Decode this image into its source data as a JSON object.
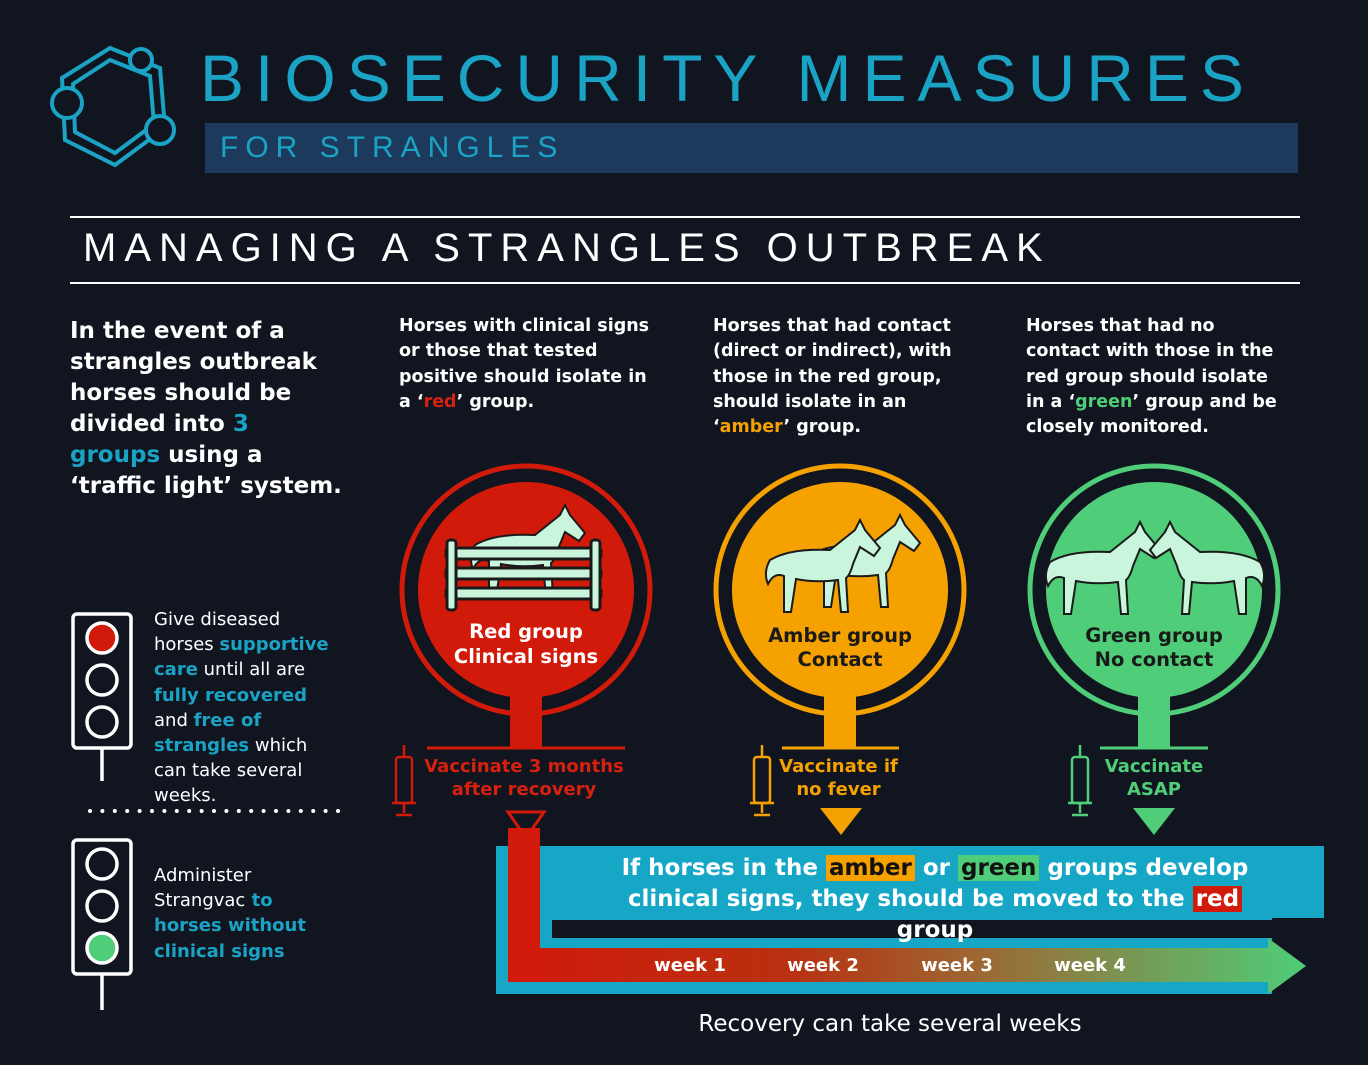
{
  "header": {
    "title": "BIOSECURITY MEASURES",
    "subtitle": "FOR STRANGLES"
  },
  "section_heading": "MANAGING A STRANGLES OUTBREAK",
  "intro": [
    "In the event of a strangles outbreak horses should be divided into ",
    "3 groups",
    " using a ‘traffic light’ system."
  ],
  "groups": [
    {
      "description": [
        "Horses with clinical signs or those that tested positive should isolate in a ‘",
        "red",
        "’ group."
      ],
      "name": "Red group",
      "status": "Clinical signs",
      "vaccination": "Vaccinate 3 months after recovery"
    },
    {
      "description": [
        "Horses that had contact (direct or indirect), with those in the red group, should isolate in an ‘",
        "amber",
        "’ group."
      ],
      "name": "Amber group",
      "status": "Contact",
      "vaccination": "Vaccinate if no fever"
    },
    {
      "description": [
        "Horses that had no contact with those in the red group should isolate in a ‘",
        "green",
        "’ group and be closely monitored."
      ],
      "name": "Green group",
      "status": "No contact",
      "vaccination": "Vaccinate ASAP"
    }
  ],
  "traffic_lights": [
    {
      "text": [
        "Give diseased horses ",
        "supportive care",
        " until all are ",
        "fully recovered",
        " and ",
        "free of strangles",
        " which can take several weeks."
      ]
    },
    {
      "text": [
        "Administer Strangvac",
        " to horses without clinical signs"
      ]
    }
  ],
  "banner": [
    "If horses in the ",
    "amber",
    " or ",
    "green",
    " groups develop clinical signs, they should be moved to the ",
    "red",
    " group"
  ],
  "timeline": {
    "weeks": [
      "week 1",
      "week 2",
      "week 3",
      "week 4"
    ],
    "caption": "Recovery can take several weeks"
  }
}
